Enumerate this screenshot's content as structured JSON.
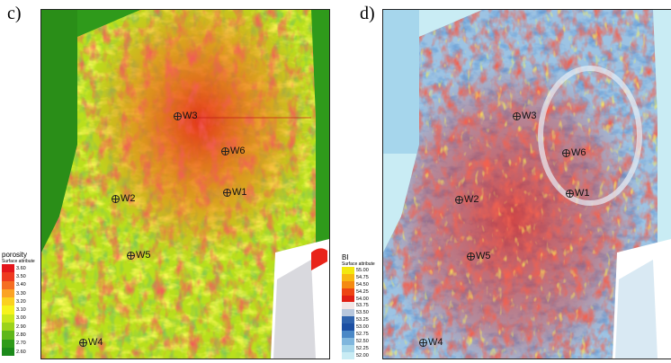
{
  "panels": [
    {
      "label": "c)",
      "legend": {
        "title": "porosity",
        "subtitle": "Surface attribute",
        "entries": [
          {
            "value": "3.60",
            "color": "#e4151b"
          },
          {
            "value": "3.50",
            "color": "#ee3a1f"
          },
          {
            "value": "3.40",
            "color": "#f56e22"
          },
          {
            "value": "3.30",
            "color": "#fba324"
          },
          {
            "value": "3.20",
            "color": "#fbd11f"
          },
          {
            "value": "3.10",
            "color": "#f6f31c"
          },
          {
            "value": "3.00",
            "color": "#cbe81a"
          },
          {
            "value": "2.90",
            "color": "#9cd31a"
          },
          {
            "value": "2.80",
            "color": "#5fb71a"
          },
          {
            "value": "2.70",
            "color": "#2f9b1a"
          },
          {
            "value": "2.60",
            "color": "#1c8a1a"
          }
        ]
      },
      "wells": [
        "W3",
        "W6",
        "W2",
        "W1",
        "W5",
        "W4"
      ]
    },
    {
      "label": "d)",
      "legend": {
        "title": "BI",
        "subtitle": "Surface attribute",
        "entries": [
          {
            "value": "55.00",
            "color": "#f3e80f"
          },
          {
            "value": "54.75",
            "color": "#f7b811"
          },
          {
            "value": "54.50",
            "color": "#f48a12"
          },
          {
            "value": "54.25",
            "color": "#ee4513"
          },
          {
            "value": "54.00",
            "color": "#e01e14"
          },
          {
            "value": "53.75",
            "color": "#f2e6e6"
          },
          {
            "value": "53.50",
            "color": "#b7c7dd"
          },
          {
            "value": "53.25",
            "color": "#2f63ad"
          },
          {
            "value": "53.00",
            "color": "#1c4fa3"
          },
          {
            "value": "52.75",
            "color": "#4a88c6"
          },
          {
            "value": "52.50",
            "color": "#7fb6dd"
          },
          {
            "value": "52.25",
            "color": "#a9d7ea"
          },
          {
            "value": "52.00",
            "color": "#c9ecf4"
          }
        ]
      },
      "wells": [
        "W3",
        "W6",
        "W2",
        "W1",
        "W5",
        "W4"
      ]
    }
  ]
}
